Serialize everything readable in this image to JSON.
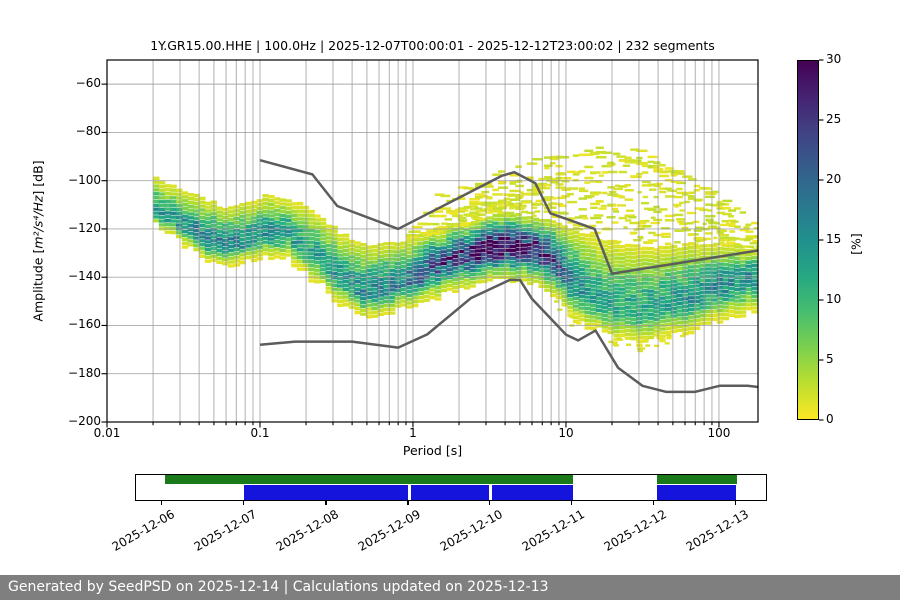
{
  "title": "1Y.GR15.00.HHE | 100.0Hz | 2025-12-07T00:00:01 - 2025-12-12T23:00:02 | 232 segments",
  "axes": {
    "xlabel": "Period [s]",
    "ylabel_prefix": "Amplitude [",
    "ylabel_math": "m²/s⁴/Hz",
    "ylabel_suffix": "] [dB]",
    "x_ticks": [
      {
        "label": "0.01",
        "value": 0.01
      },
      {
        "label": "0.1",
        "value": 0.1
      },
      {
        "label": "1",
        "value": 1
      },
      {
        "label": "10",
        "value": 10
      },
      {
        "label": "100",
        "value": 100
      }
    ],
    "y_ticks": [
      {
        "label": "−60",
        "value": -60
      },
      {
        "label": "−80",
        "value": -80
      },
      {
        "label": "−100",
        "value": -100
      },
      {
        "label": "−120",
        "value": -120
      },
      {
        "label": "−140",
        "value": -140
      },
      {
        "label": "−160",
        "value": -160
      },
      {
        "label": "−180",
        "value": -180
      },
      {
        "label": "−200",
        "value": -200
      }
    ]
  },
  "colorbar": {
    "label": "[%]",
    "min": 0,
    "max": 30,
    "colormap": "viridis_r",
    "ticks": [
      {
        "label": "0",
        "value": 0
      },
      {
        "label": "5",
        "value": 5
      },
      {
        "label": "10",
        "value": 10
      },
      {
        "label": "15",
        "value": 15
      },
      {
        "label": "20",
        "value": 20
      },
      {
        "label": "25",
        "value": 25
      },
      {
        "label": "30",
        "value": 30
      }
    ]
  },
  "chart_data": {
    "type": "heatmap",
    "title": "1Y.GR15.00.HHE | 100.0Hz | 2025-12-07T00:00:01 - 2025-12-12T23:00:02 | 232 segments",
    "xlabel": "Period [s]",
    "ylabel": "Amplitude [m²/s⁴/Hz] [dB]",
    "x_scale": "log",
    "xlim": [
      0.01,
      180
    ],
    "ylim": [
      -200,
      -50
    ],
    "grid": true,
    "grid_color": "#9a9a9a",
    "noise_model_color": "#5c5c5c",
    "colorbar_range": [
      0,
      30
    ],
    "psd_distribution": {
      "comment": "probability band of PSD histogram vs period: statistical mode, upper/lower extent (dB), peak probability (%)",
      "period_s": [
        0.02,
        0.028,
        0.04,
        0.055,
        0.075,
        0.105,
        0.15,
        0.22,
        0.32,
        0.45,
        0.65,
        0.9,
        1.3,
        1.9,
        2.8,
        4.2,
        6.0,
        8.0,
        10.5,
        14.0,
        20.0,
        28.0,
        40.0,
        60.0,
        90.0,
        130.0,
        180.0
      ],
      "mode_db": [
        -112,
        -117,
        -124,
        -127,
        -125,
        -121,
        -122,
        -131,
        -140,
        -146,
        -145,
        -141,
        -136,
        -131,
        -128,
        -127,
        -128,
        -133,
        -143,
        -149,
        -153,
        -154,
        -152,
        -148,
        -144,
        -141,
        -138
      ],
      "lower_db": [
        -118,
        -124,
        -131,
        -134,
        -133,
        -130,
        -131,
        -141,
        -150,
        -155,
        -154,
        -151,
        -147,
        -143,
        -140,
        -139,
        -141,
        -146,
        -155,
        -160,
        -164,
        -166,
        -164,
        -161,
        -157,
        -154,
        -152
      ],
      "upper_db": [
        -99,
        -103,
        -108,
        -111,
        -110,
        -107,
        -108,
        -114,
        -122,
        -127,
        -127,
        -125,
        -122,
        -119,
        -116,
        -114,
        -115,
        -117,
        -120,
        -123,
        -126,
        -128,
        -128,
        -127,
        -127,
        -128,
        -128
      ],
      "peak_percent": [
        14,
        14,
        16,
        17,
        15,
        15,
        14,
        13,
        14,
        15,
        16,
        18,
        22,
        26,
        29,
        30,
        28,
        22,
        16,
        13,
        12,
        12,
        13,
        14,
        15,
        15,
        15
      ]
    },
    "event_cloud_envelope": {
      "comment": "upper envelope of sparse low-probability (yellow) transient PSD curves",
      "period_s": [
        0.9,
        1.5,
        2.5,
        4,
        6,
        9,
        14,
        19,
        26,
        40,
        60,
        90,
        130,
        180
      ],
      "upper_db": [
        -120,
        -113,
        -106,
        -100,
        -95,
        -91,
        -87,
        -86,
        -88,
        -94,
        -101,
        -108,
        -114,
        -119
      ]
    },
    "noise_models": {
      "name": "Peterson NHNM / NLNM",
      "nhnm": [
        [
          0.1,
          -91.5
        ],
        [
          0.22,
          -97.4
        ],
        [
          0.32,
          -110.5
        ],
        [
          0.8,
          -120.0
        ],
        [
          3.8,
          -98.0
        ],
        [
          4.6,
          -96.5
        ],
        [
          6.3,
          -101.0
        ],
        [
          7.9,
          -113.5
        ],
        [
          15.4,
          -120.0
        ],
        [
          20.0,
          -138.5
        ],
        [
          354.8,
          -126.0
        ]
      ],
      "nlnm": [
        [
          0.1,
          -168.0
        ],
        [
          0.17,
          -166.7
        ],
        [
          0.4,
          -166.7
        ],
        [
          0.8,
          -169.2
        ],
        [
          1.24,
          -163.7
        ],
        [
          2.4,
          -148.6
        ],
        [
          4.3,
          -141.1
        ],
        [
          5.0,
          -141.1
        ],
        [
          6.0,
          -149.0
        ],
        [
          10.0,
          -163.8
        ],
        [
          12.0,
          -166.2
        ],
        [
          15.6,
          -162.1
        ],
        [
          21.9,
          -177.5
        ],
        [
          31.6,
          -185.0
        ],
        [
          45.0,
          -187.5
        ],
        [
          70.0,
          -187.5
        ],
        [
          101.0,
          -185.0
        ],
        [
          154.0,
          -185.0
        ],
        [
          328.0,
          -187.5
        ]
      ]
    }
  },
  "availability": {
    "date_ticks": [
      "2025-12-06",
      "2025-12-07",
      "2025-12-08",
      "2025-12-09",
      "2025-12-10",
      "2025-12-11",
      "2025-12-12",
      "2025-12-13"
    ],
    "tick_positions": [
      0.041,
      0.171,
      0.302,
      0.432,
      0.562,
      0.692,
      0.822,
      0.952
    ],
    "data_segments": [
      [
        0.046,
        0.694
      ],
      [
        0.827,
        0.954
      ]
    ],
    "psd_segments": [
      [
        0.171,
        0.432
      ],
      [
        0.437,
        0.56
      ],
      [
        0.565,
        0.694
      ],
      [
        0.827,
        0.952
      ]
    ],
    "data_color": "#1a7a1a",
    "psd_color": "#1414dd"
  },
  "footer": {
    "text": "Generated by SeedPSD on 2025-12-14 | Calculations updated on 2025-12-13",
    "bg": "#7f7f7f"
  }
}
